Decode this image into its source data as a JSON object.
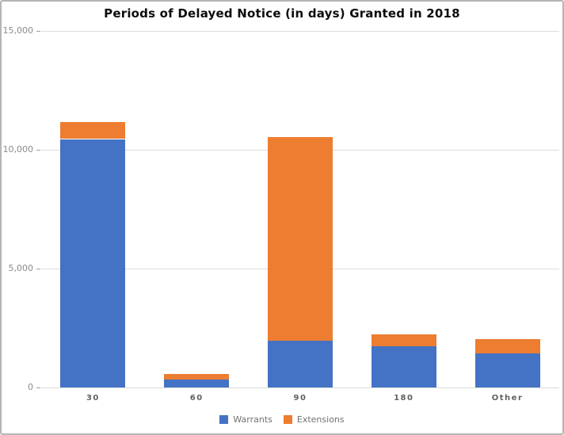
{
  "chart_data": {
    "type": "bar",
    "stacked": true,
    "title": "Periods of Delayed Notice (in days) Granted in 2018",
    "categories": [
      "30",
      "60",
      "90",
      "180",
      "Other"
    ],
    "series": [
      {
        "name": "Warrants",
        "color": "#4472c4",
        "values": [
          10450,
          320,
          1960,
          1730,
          1430
        ]
      },
      {
        "name": "Extensions",
        "color": "#ed7d31",
        "values": [
          730,
          250,
          8590,
          500,
          590
        ]
      }
    ],
    "xlabel": "",
    "ylabel": "",
    "ylim": [
      0,
      15000
    ],
    "yticks": [
      0,
      5000,
      10000,
      15000
    ],
    "ytick_labels": [
      "0",
      "5,000",
      "10,000",
      "15,000"
    ],
    "grid": true,
    "legend_position": "bottom"
  }
}
